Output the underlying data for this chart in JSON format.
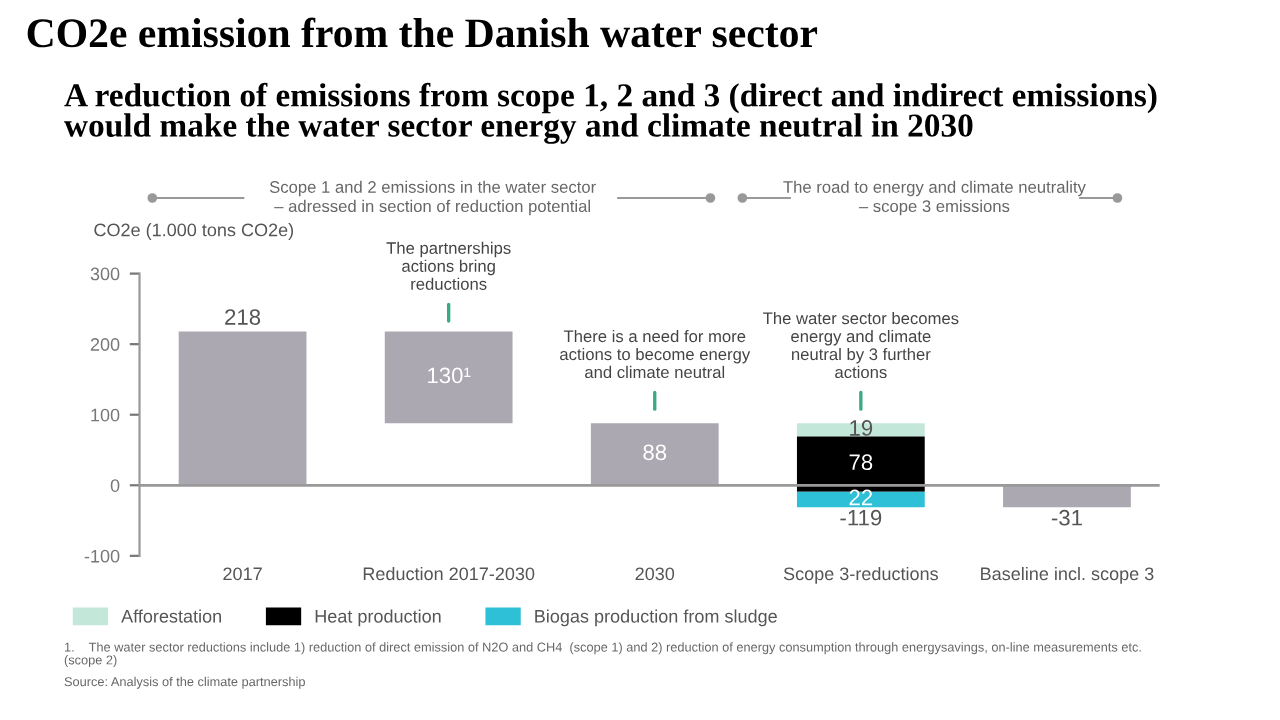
{
  "chart_data": {
    "type": "bar",
    "title": "CO2e emission from the Danish water sector",
    "subtitle": "A reduction of emissions from scope 1, 2 and 3 (direct and indirect emissions) would make the water sector energy and climate neutral in 2030",
    "ylabel": "CO2e (1.000 tons CO2e)",
    "categories": [
      "2017",
      "Reduction 2017-2030",
      "2030",
      "Scope 3-reductions",
      "Baseline incl. scope 3"
    ],
    "series": [
      {
        "color": "#aba8b1",
        "values": [
          218,
          130,
          88,
          null,
          -31
        ],
        "base": [
          0,
          88,
          0,
          null,
          0
        ],
        "value_labels": [
          "218",
          "130¹",
          "88",
          null,
          "-31"
        ]
      },
      {
        "name": "Afforestation",
        "color": "#c3e8da",
        "values": [
          null,
          null,
          null,
          19,
          null
        ],
        "base": [
          null,
          null,
          null,
          69,
          null
        ],
        "value_labels": [
          null,
          null,
          null,
          "19",
          null
        ]
      },
      {
        "name": "Heat production",
        "color": "#000000",
        "values": [
          null,
          null,
          null,
          78,
          null
        ],
        "base": [
          null,
          null,
          null,
          -9,
          null
        ],
        "value_labels": [
          null,
          null,
          null,
          "78",
          null
        ]
      },
      {
        "name": "Biogas production from sludge",
        "color": "#2ec0d6",
        "values": [
          null,
          null,
          null,
          22,
          null
        ],
        "base": [
          null,
          null,
          null,
          -31,
          null
        ],
        "value_labels": [
          null,
          null,
          null,
          "22",
          null
        ]
      }
    ],
    "ylim": [
      -100,
      300
    ],
    "yticks": [
      -100,
      0,
      100,
      200,
      300
    ],
    "grid": false,
    "ref_lines": [
      {
        "axis": "y",
        "value": 0,
        "color": "#999999"
      }
    ],
    "legend": "bottom left",
    "annotations": [
      "Scope 1 and 2 emissions in the water sector – adressed in section of reduction potential",
      "The road to energy and climate neutrality – scope 3 emissions",
      "The partnerships actions bring reductions",
      "There is a need for more actions to become energy and climate neutral",
      "The water sector becomes energy and climate neutral by 3 further actions",
      "-119",
      "1.    The water sector reductions include 1) reduction of direct emission of N2O and CH4  (scope 1) and 2) reduction of energy consumption through energysavings, on-line measurements etc. (scope 2)",
      "Source: Analysis of the climate partnership"
    ]
  }
}
